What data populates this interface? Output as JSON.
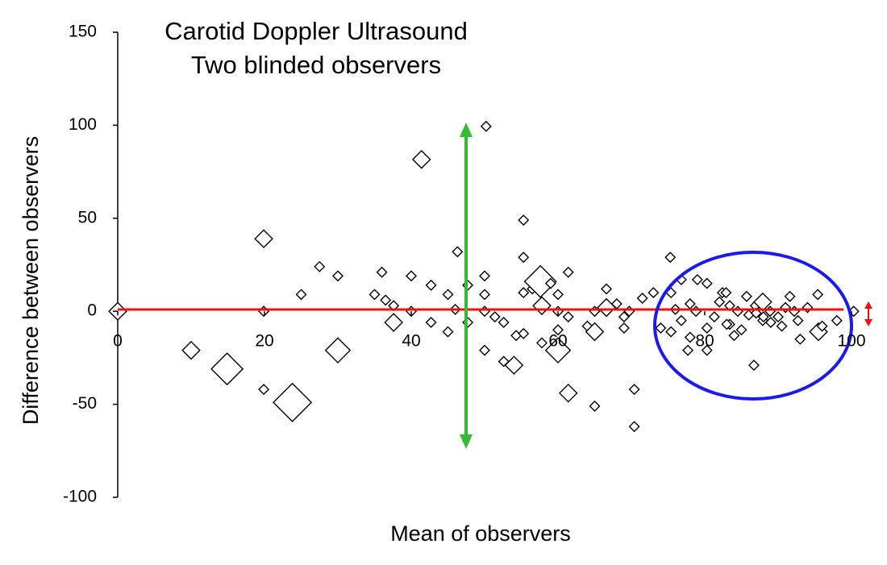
{
  "chart_data": {
    "type": "scatter",
    "title": [
      "Carotid Doppler Ultrasound",
      "Two blinded observers"
    ],
    "x_label": "Mean of observers",
    "y_label": "Difference between observers",
    "xlim": [
      0,
      100
    ],
    "ylim": [
      -100,
      150
    ],
    "xticks": [
      0,
      20,
      40,
      60,
      80,
      100
    ],
    "yticks": [
      -100,
      -50,
      0,
      50,
      100,
      150
    ],
    "color": "#000000",
    "x": [
      0,
      10,
      14.9,
      19.9,
      19.9,
      19.9,
      23.8,
      25,
      27.5,
      30,
      30,
      35,
      36,
      36.5,
      37.6,
      37.6,
      40,
      40,
      41.4,
      42.7,
      42.7,
      45,
      45,
      46.3,
      46,
      47.7,
      47.7,
      50.2,
      50,
      50,
      50,
      50,
      51.4,
      52.6,
      52.6,
      54,
      54.3,
      55.3,
      55.3,
      55.3,
      55.3,
      56.5,
      57.6,
      57.8,
      57.8,
      59,
      60,
      60,
      60,
      60,
      61.4,
      61.4,
      61.4,
      64,
      65,
      65,
      65,
      66.6,
      66.6,
      68,
      69,
      69,
      69.7,
      70.4,
      70.4,
      71.5,
      73,
      75.3,
      75.4,
      74,
      75.4,
      76,
      76.8,
      76.8,
      78,
      78,
      77.7,
      78.8,
      79,
      80.3,
      80.3,
      80.3,
      81.3,
      82.4,
      82.9,
      83.4,
      83.4,
      84,
      84.5,
      85,
      85.7,
      86.7,
      86.9,
      87.9,
      87.9,
      88.9,
      90,
      90.5,
      91.6,
      92.2,
      92.7,
      93,
      95.5,
      95.4,
      96,
      98,
      100.3,
      86,
      88,
      87,
      91,
      89,
      83,
      82,
      94
    ],
    "y": [
      0,
      -21,
      -31,
      39,
      0,
      -42,
      -49,
      9,
      24,
      19,
      -21,
      9,
      21,
      6,
      3,
      -6,
      19,
      0,
      81.6,
      14,
      -6,
      9,
      -11,
      32,
      1,
      14,
      -6,
      99.4,
      19,
      9,
      -21,
      0,
      -3,
      -6,
      -27,
      -29,
      -13,
      49,
      29,
      10,
      -12,
      12,
      16,
      3,
      -17,
      15,
      9,
      -10,
      -21,
      0,
      -3,
      21,
      -44,
      -8,
      -11,
      -51,
      0,
      12,
      2,
      4,
      -3,
      -9,
      0,
      -42,
      -62,
      7,
      10,
      29,
      10,
      -9,
      -11,
      1,
      17,
      -5,
      4,
      -14,
      -21,
      0,
      17,
      15,
      -9,
      -21,
      -3,
      10,
      10,
      3,
      -7,
      -13,
      0,
      -10,
      8,
      -29,
      3,
      -5,
      5,
      0,
      -3,
      -8,
      8,
      0,
      -5,
      -15,
      -11,
      9,
      -8,
      -5,
      0,
      -2,
      -3,
      -1,
      2,
      -6,
      -7,
      5,
      2
    ],
    "sizes": [
      2,
      2,
      4,
      2,
      1,
      1,
      5,
      1,
      1,
      1,
      3,
      1,
      1,
      1,
      1,
      2,
      1,
      1,
      2,
      1,
      1,
      1,
      1,
      1,
      1,
      1,
      1,
      1,
      1,
      1,
      1,
      1,
      1,
      1,
      1,
      2,
      1,
      1,
      1,
      1,
      1,
      1,
      4,
      2,
      1,
      1,
      1,
      1,
      3,
      1,
      1,
      1,
      2,
      1,
      2,
      1,
      1,
      1,
      2,
      1,
      1,
      1,
      1,
      1,
      1,
      1,
      1,
      1,
      1,
      1,
      1,
      1,
      1,
      1,
      1,
      1,
      1,
      1,
      1,
      1,
      1,
      1,
      1,
      1,
      1,
      1,
      1,
      1,
      1,
      1,
      1,
      1,
      1,
      1,
      2,
      1,
      1,
      1,
      1,
      1,
      1,
      1,
      2,
      1,
      1,
      1,
      1,
      1,
      1,
      1,
      1,
      1,
      1,
      1,
      1
    ]
  }
}
